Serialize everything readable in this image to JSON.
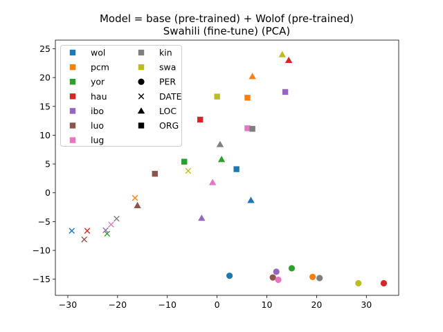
{
  "chart_data": {
    "type": "scatter",
    "title_lines": [
      "Model = base (pre-trained) + Wolof (pre-trained)",
      "Swahili (fine-tune) (PCA)"
    ],
    "xlabel": "",
    "ylabel": "",
    "xlim": [
      -32.5,
      36.5
    ],
    "ylim": [
      -17.8,
      26.5
    ],
    "xticks": [
      -30,
      -20,
      -10,
      0,
      10,
      20,
      30
    ],
    "yticks": [
      -15,
      -10,
      -5,
      0,
      5,
      10,
      15,
      20,
      25
    ],
    "grid": false,
    "legend_placement": "top-left",
    "languages": [
      {
        "name": "wol",
        "color": "#1f77b4"
      },
      {
        "name": "pcm",
        "color": "#ff7f0e"
      },
      {
        "name": "yor",
        "color": "#2ca02c"
      },
      {
        "name": "hau",
        "color": "#d62728"
      },
      {
        "name": "ibo",
        "color": "#9467bd"
      },
      {
        "name": "luo",
        "color": "#8c564b"
      },
      {
        "name": "lug",
        "color": "#e377c2"
      },
      {
        "name": "kin",
        "color": "#7f7f7f"
      },
      {
        "name": "swa",
        "color": "#bcbd22"
      }
    ],
    "entity_types": [
      {
        "name": "PER",
        "marker": "circle"
      },
      {
        "name": "DATE",
        "marker": "x"
      },
      {
        "name": "LOC",
        "marker": "triangle"
      },
      {
        "name": "ORG",
        "marker": "square"
      }
    ],
    "points": [
      {
        "lang": "wol",
        "type": "PER",
        "x": 2.5,
        "y": -14.4
      },
      {
        "lang": "wol",
        "type": "DATE",
        "x": -29.2,
        "y": -6.6
      },
      {
        "lang": "wol",
        "type": "LOC",
        "x": 6.8,
        "y": -1.3
      },
      {
        "lang": "wol",
        "type": "ORG",
        "x": 3.9,
        "y": 4.1
      },
      {
        "lang": "pcm",
        "type": "PER",
        "x": 19.2,
        "y": -14.6
      },
      {
        "lang": "pcm",
        "type": "DATE",
        "x": -16.5,
        "y": -0.9
      },
      {
        "lang": "pcm",
        "type": "LOC",
        "x": 7.1,
        "y": 20.2
      },
      {
        "lang": "pcm",
        "type": "ORG",
        "x": 6.1,
        "y": 16.5
      },
      {
        "lang": "yor",
        "type": "PER",
        "x": 15.0,
        "y": -13.1
      },
      {
        "lang": "yor",
        "type": "DATE",
        "x": -22.1,
        "y": -7.1
      },
      {
        "lang": "yor",
        "type": "LOC",
        "x": 0.9,
        "y": 5.8
      },
      {
        "lang": "yor",
        "type": "ORG",
        "x": -6.6,
        "y": 5.4
      },
      {
        "lang": "hau",
        "type": "PER",
        "x": 33.5,
        "y": -15.7
      },
      {
        "lang": "hau",
        "type": "DATE",
        "x": -26.1,
        "y": -6.6
      },
      {
        "lang": "hau",
        "type": "LOC",
        "x": 14.4,
        "y": 23.0
      },
      {
        "lang": "hau",
        "type": "ORG",
        "x": -3.4,
        "y": 12.7
      },
      {
        "lang": "ibo",
        "type": "PER",
        "x": 11.9,
        "y": -13.7
      },
      {
        "lang": "ibo",
        "type": "DATE",
        "x": -22.4,
        "y": -6.5
      },
      {
        "lang": "ibo",
        "type": "LOC",
        "x": -3.1,
        "y": -4.4
      },
      {
        "lang": "ibo",
        "type": "ORG",
        "x": 13.7,
        "y": 17.5
      },
      {
        "lang": "luo",
        "type": "PER",
        "x": 11.2,
        "y": -14.7
      },
      {
        "lang": "luo",
        "type": "DATE",
        "x": -26.7,
        "y": -8.1
      },
      {
        "lang": "luo",
        "type": "LOC",
        "x": -16.0,
        "y": -2.2
      },
      {
        "lang": "luo",
        "type": "ORG",
        "x": -12.5,
        "y": 3.3
      },
      {
        "lang": "lug",
        "type": "PER",
        "x": 12.3,
        "y": -15.1
      },
      {
        "lang": "lug",
        "type": "DATE",
        "x": -21.3,
        "y": -5.5
      },
      {
        "lang": "lug",
        "type": "LOC",
        "x": -0.9,
        "y": 1.8
      },
      {
        "lang": "lug",
        "type": "ORG",
        "x": 6.1,
        "y": 11.2
      },
      {
        "lang": "kin",
        "type": "PER",
        "x": 20.6,
        "y": -14.8
      },
      {
        "lang": "kin",
        "type": "DATE",
        "x": -20.2,
        "y": -4.5
      },
      {
        "lang": "kin",
        "type": "LOC",
        "x": 0.6,
        "y": 8.4
      },
      {
        "lang": "kin",
        "type": "ORG",
        "x": 7.1,
        "y": 11.1
      },
      {
        "lang": "swa",
        "type": "PER",
        "x": 28.4,
        "y": -15.7
      },
      {
        "lang": "swa",
        "type": "DATE",
        "x": -5.8,
        "y": 3.8
      },
      {
        "lang": "swa",
        "type": "LOC",
        "x": 13.1,
        "y": 24.0
      },
      {
        "lang": "swa",
        "type": "ORG",
        "x": 0.0,
        "y": 16.7
      }
    ]
  }
}
